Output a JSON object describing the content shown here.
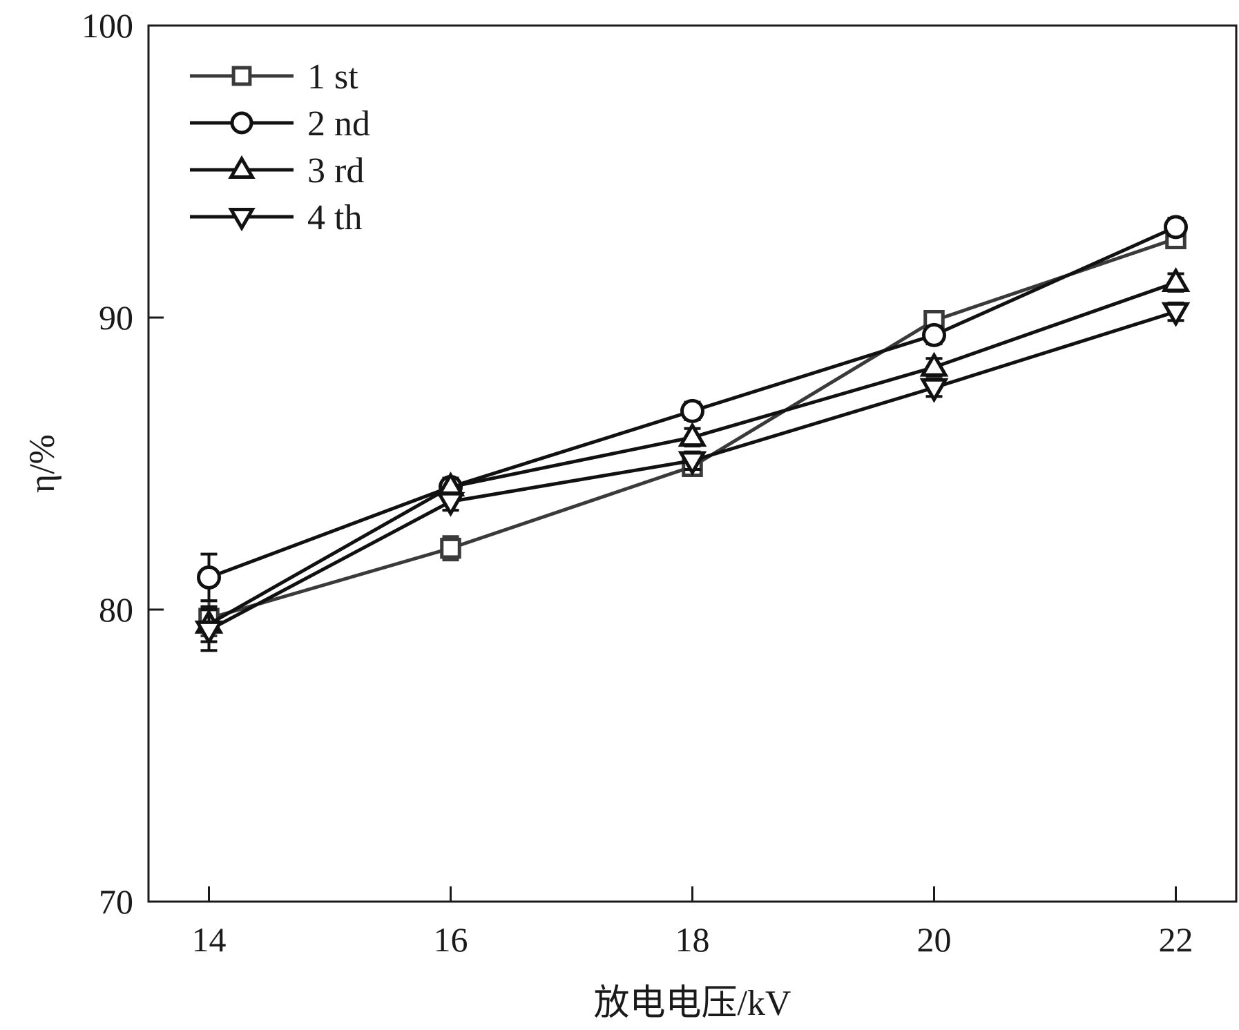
{
  "chart_data": {
    "type": "line",
    "xlabel": "放电电压/kV",
    "ylabel": "η/%",
    "x": [
      14,
      16,
      18,
      20,
      22
    ],
    "x_ticks": [
      "14",
      "16",
      "18",
      "20",
      "22"
    ],
    "xlim": [
      13.5,
      22.5
    ],
    "ylim": [
      70,
      100
    ],
    "y_ticks": [
      "70",
      "80",
      "90",
      "100"
    ],
    "grid": false,
    "legend_position": "top-left",
    "series": [
      {
        "name": "1 st",
        "marker": "square",
        "color": "#3a3a3a",
        "values": [
          79.7,
          82.1,
          84.9,
          89.9,
          92.7
        ],
        "errors": [
          0.6,
          0.4,
          0.3,
          0.3,
          0.3
        ]
      },
      {
        "name": "2 nd",
        "marker": "circle",
        "color": "#111111",
        "values": [
          81.1,
          84.2,
          86.8,
          89.4,
          93.1
        ],
        "errors": [
          0.8,
          0.3,
          0.3,
          0.3,
          0.3
        ]
      },
      {
        "name": "3 rd",
        "marker": "triangle-up",
        "color": "#111111",
        "values": [
          79.5,
          84.2,
          85.9,
          88.3,
          91.2
        ],
        "errors": [
          0.6,
          0.3,
          0.3,
          0.3,
          0.3
        ]
      },
      {
        "name": "4 th",
        "marker": "triangle-down",
        "color": "#111111",
        "values": [
          79.3,
          83.7,
          85.1,
          87.6,
          90.2
        ],
        "errors": [
          0.7,
          0.3,
          0.3,
          0.3,
          0.3
        ]
      }
    ]
  }
}
